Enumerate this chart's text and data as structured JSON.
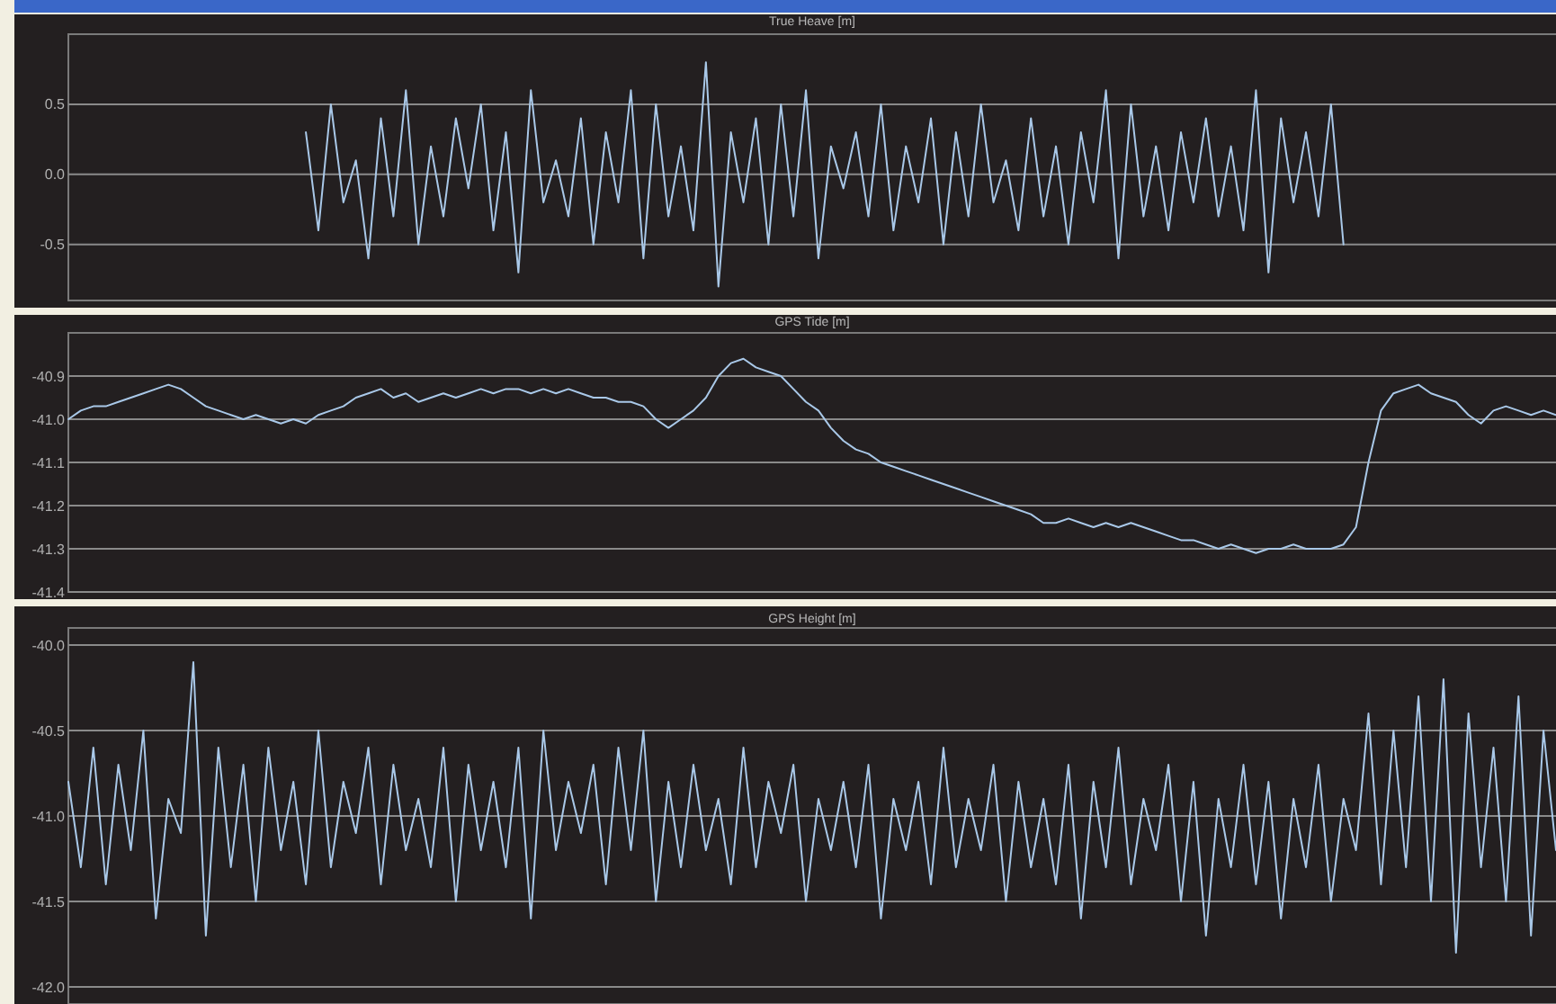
{
  "chart_data": [
    {
      "type": "line",
      "title": "True Heave [m]",
      "categories": [
        null,
        null,
        null,
        null,
        null,
        null,
        null,
        null,
        null,
        null,
        null,
        null,
        null,
        null,
        null,
        null,
        null,
        null,
        null,
        null,
        null,
        null,
        null,
        null,
        null,
        null,
        null,
        null,
        null,
        null,
        null,
        null,
        null,
        null,
        null,
        null,
        null,
        null,
        null,
        null,
        null,
        null,
        null,
        null,
        null,
        null,
        null,
        null,
        null,
        null,
        null,
        null,
        null,
        null,
        null,
        null,
        null,
        null,
        null,
        null,
        null,
        null,
        null,
        null,
        null,
        null,
        null,
        null,
        null,
        null,
        null,
        null,
        null,
        null,
        null,
        null,
        null,
        null,
        null,
        null,
        null,
        null,
        null,
        null,
        null,
        null,
        null,
        null,
        null,
        null,
        null,
        null,
        null,
        null,
        null,
        null,
        null,
        null,
        null,
        null,
        null,
        null,
        null,
        null,
        null,
        null,
        null,
        null,
        null,
        null,
        null,
        null,
        null,
        null,
        null,
        null,
        null,
        null,
        null,
        null
      ],
      "series": [
        {
          "color": "#a9c8e8",
          "values": [
            null,
            null,
            null,
            null,
            null,
            null,
            null,
            null,
            null,
            null,
            null,
            null,
            null,
            null,
            null,
            null,
            null,
            null,
            null,
            0.3,
            -0.4,
            0.5,
            -0.2,
            0.1,
            -0.6,
            0.4,
            -0.3,
            0.6,
            -0.5,
            0.2,
            -0.3,
            0.4,
            -0.1,
            0.5,
            -0.4,
            0.3,
            -0.7,
            0.6,
            -0.2,
            0.1,
            -0.3,
            0.4,
            -0.5,
            0.3,
            -0.2,
            0.6,
            -0.6,
            0.5,
            -0.3,
            0.2,
            -0.4,
            0.8,
            -0.8,
            0.3,
            -0.2,
            0.4,
            -0.5,
            0.5,
            -0.3,
            0.6,
            -0.6,
            0.2,
            -0.1,
            0.3,
            -0.3,
            0.5,
            -0.4,
            0.2,
            -0.2,
            0.4,
            -0.5,
            0.3,
            -0.3,
            0.5,
            -0.2,
            0.1,
            -0.4,
            0.4,
            -0.3,
            0.2,
            -0.5,
            0.3,
            -0.2,
            0.6,
            -0.6,
            0.5,
            -0.3,
            0.2,
            -0.4,
            0.3,
            -0.2,
            0.4,
            -0.3,
            0.2,
            -0.4,
            0.6,
            -0.7,
            0.4,
            -0.2,
            0.3,
            -0.3,
            0.5,
            -0.5,
            null,
            null,
            null,
            null,
            null,
            null,
            null,
            null,
            null,
            null,
            null,
            null,
            null,
            null,
            null,
            null,
            null
          ]
        }
      ],
      "ylim": [
        -0.9,
        1.0
      ],
      "yticks": [
        {
          "value": -0.5,
          "label": "-0.5"
        },
        {
          "value": 0,
          "label": "0.0"
        },
        0.5
      ],
      "grid": "y",
      "tick_labels": "y"
    },
    {
      "type": "line",
      "title": "GPS Tide [m]",
      "categories": [
        null,
        null,
        null,
        null,
        null,
        null,
        null,
        null,
        null,
        null,
        null,
        null,
        null,
        null,
        null,
        null,
        null,
        null,
        null,
        null,
        null,
        null,
        null,
        null,
        null,
        null,
        null,
        null,
        null,
        null,
        null,
        null,
        null,
        null,
        null,
        null,
        null,
        null,
        null,
        null,
        null,
        null,
        null,
        null,
        null,
        null,
        null,
        null,
        null,
        null,
        null,
        null,
        null,
        null,
        null,
        null,
        null,
        null,
        null,
        null,
        null,
        null,
        null,
        null,
        null,
        null,
        null,
        null,
        null,
        null,
        null,
        null,
        null,
        null,
        null,
        null,
        null,
        null,
        null,
        null,
        null,
        null,
        null,
        null,
        null,
        null,
        null,
        null,
        null,
        null,
        null,
        null,
        null,
        null,
        null,
        null,
        null,
        null,
        null,
        null,
        null,
        null,
        null,
        null,
        null,
        null,
        null,
        null,
        null,
        null,
        null,
        null,
        null,
        null,
        null,
        null,
        null,
        null,
        null,
        null
      ],
      "series": [
        {
          "color": "#a9c8e8",
          "values": [
            -41.0,
            -40.98,
            -40.97,
            -40.97,
            -40.96,
            -40.95,
            -40.94,
            -40.93,
            -40.92,
            -40.93,
            -40.95,
            -40.97,
            -40.98,
            -40.99,
            -41.0,
            -40.99,
            -41.0,
            -41.01,
            -41.0,
            -41.01,
            -40.99,
            -40.98,
            -40.97,
            -40.95,
            -40.94,
            -40.93,
            -40.95,
            -40.94,
            -40.96,
            -40.95,
            -40.94,
            -40.95,
            -40.94,
            -40.93,
            -40.94,
            -40.93,
            -40.93,
            -40.94,
            -40.93,
            -40.94,
            -40.93,
            -40.94,
            -40.95,
            -40.95,
            -40.96,
            -40.96,
            -40.97,
            -41.0,
            -41.02,
            -41.0,
            -40.98,
            -40.95,
            -40.9,
            -40.87,
            -40.86,
            -40.88,
            -40.89,
            -40.9,
            -40.93,
            -40.96,
            -40.98,
            -41.02,
            -41.05,
            -41.07,
            -41.08,
            -41.1,
            -41.11,
            -41.12,
            -41.13,
            -41.14,
            -41.15,
            -41.16,
            -41.17,
            -41.18,
            -41.19,
            -41.2,
            -41.21,
            -41.22,
            -41.24,
            -41.24,
            -41.23,
            -41.24,
            -41.25,
            -41.24,
            -41.25,
            -41.24,
            -41.25,
            -41.26,
            -41.27,
            -41.28,
            -41.28,
            -41.29,
            -41.3,
            -41.29,
            -41.3,
            -41.31,
            -41.3,
            -41.3,
            -41.29,
            -41.3,
            -41.3,
            -41.3,
            -41.29,
            -41.25,
            -41.1,
            -40.98,
            -40.94,
            -40.93,
            -40.92,
            -40.94,
            -40.95,
            -40.96,
            -40.99,
            -41.01,
            -40.98,
            -40.97,
            -40.98,
            -40.99,
            -40.98,
            -40.99
          ]
        }
      ],
      "ylim": [
        -41.4,
        -40.8
      ],
      "yticks": [
        {
          "value": -41.4,
          "label": "-41.4"
        },
        {
          "value": -41.3,
          "label": "-41.3"
        },
        {
          "value": -41.2,
          "label": "-41.2"
        },
        {
          "value": -41.1,
          "label": "-41.1"
        },
        {
          "value": -41.0,
          "label": "-41.0"
        },
        {
          "value": -40.9,
          "label": "-40.9"
        }
      ],
      "grid": "y",
      "tick_labels": "y"
    },
    {
      "type": "line",
      "title": "GPS Height [m]",
      "categories": [
        null,
        null,
        null,
        null,
        null,
        null,
        null,
        null,
        null,
        null,
        null,
        null,
        null,
        null,
        null,
        null,
        null,
        null,
        null,
        null,
        null,
        null,
        null,
        null,
        null,
        null,
        null,
        null,
        null,
        null,
        null,
        null,
        null,
        null,
        null,
        null,
        null,
        null,
        null,
        null,
        null,
        null,
        null,
        null,
        null,
        null,
        null,
        null,
        null,
        null,
        null,
        null,
        null,
        null,
        null,
        null,
        null,
        null,
        null,
        null,
        null,
        null,
        null,
        null,
        null,
        null,
        null,
        null,
        null,
        null,
        null,
        null,
        null,
        null,
        null,
        null,
        null,
        null,
        null,
        null,
        null,
        null,
        null,
        null,
        null,
        null,
        null,
        null,
        null,
        null,
        null,
        null,
        null,
        null,
        null,
        null,
        null,
        null,
        null,
        null,
        null,
        null,
        null,
        null,
        null,
        null,
        null,
        null,
        null,
        null,
        null,
        null,
        null,
        null,
        null,
        null,
        null,
        null,
        null,
        null
      ],
      "series": [
        {
          "color": "#a9c8e8",
          "values": [
            -40.8,
            -41.3,
            -40.6,
            -41.4,
            -40.7,
            -41.2,
            -40.5,
            -41.6,
            -40.9,
            -41.1,
            -40.1,
            -41.7,
            -40.6,
            -41.3,
            -40.7,
            -41.5,
            -40.6,
            -41.2,
            -40.8,
            -41.4,
            -40.5,
            -41.3,
            -40.8,
            -41.1,
            -40.6,
            -41.4,
            -40.7,
            -41.2,
            -40.9,
            -41.3,
            -40.6,
            -41.5,
            -40.7,
            -41.2,
            -40.8,
            -41.3,
            -40.6,
            -41.6,
            -40.5,
            -41.2,
            -40.8,
            -41.1,
            -40.7,
            -41.4,
            -40.6,
            -41.2,
            -40.5,
            -41.5,
            -40.8,
            -41.3,
            -40.7,
            -41.2,
            -40.9,
            -41.4,
            -40.6,
            -41.3,
            -40.8,
            -41.1,
            -40.7,
            -41.5,
            -40.9,
            -41.2,
            -40.8,
            -41.3,
            -40.7,
            -41.6,
            -40.9,
            -41.2,
            -40.8,
            -41.4,
            -40.6,
            -41.3,
            -40.9,
            -41.2,
            -40.7,
            -41.5,
            -40.8,
            -41.3,
            -40.9,
            -41.4,
            -40.7,
            -41.6,
            -40.8,
            -41.3,
            -40.6,
            -41.4,
            -40.9,
            -41.2,
            -40.7,
            -41.5,
            -40.8,
            -41.7,
            -40.9,
            -41.3,
            -40.7,
            -41.4,
            -40.8,
            -41.6,
            -40.9,
            -41.3,
            -40.7,
            -41.5,
            -40.9,
            -41.2,
            -40.4,
            -41.4,
            -40.5,
            -41.3,
            -40.3,
            -41.5,
            -40.2,
            -41.8,
            -40.4,
            -41.3,
            -40.6,
            -41.5,
            -40.3,
            -41.7,
            -40.5,
            -41.2
          ]
        }
      ],
      "ylim": [
        -42.1,
        -39.9
      ],
      "yticks": [
        {
          "value": -42.0,
          "label": "-42.0"
        },
        {
          "value": -41.5,
          "label": "-41.5"
        },
        {
          "value": -41.0,
          "label": "-41.0"
        },
        {
          "value": -40.5,
          "label": "-40.5"
        },
        {
          "value": -40.0,
          "label": "-40.0"
        }
      ],
      "grid": "y",
      "tick_labels": "y"
    }
  ]
}
